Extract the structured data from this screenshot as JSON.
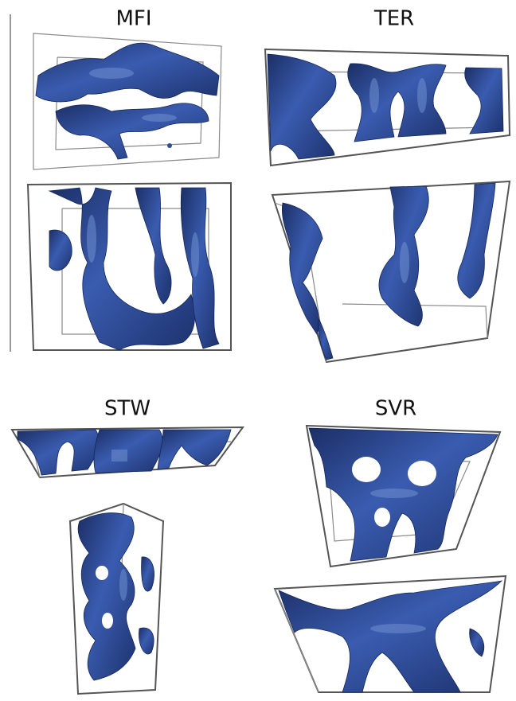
{
  "panels": [
    {
      "label": "MFI"
    },
    {
      "label": "TER"
    },
    {
      "label": "STW"
    },
    {
      "label": "SVR"
    }
  ]
}
